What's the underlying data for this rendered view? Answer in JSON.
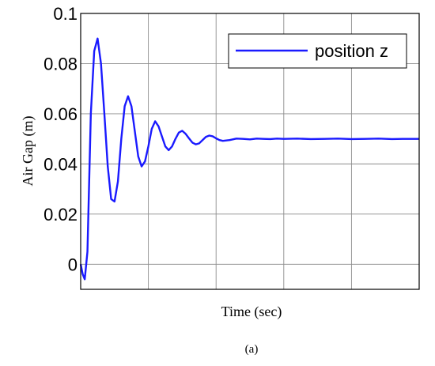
{
  "chart_data": {
    "type": "line",
    "xlabel": "Time (sec)",
    "ylabel": "Air Gap (m)",
    "caption": "(a)",
    "x_ticks_labeled": false,
    "xlim": [
      0,
      5
    ],
    "ylim": [
      -0.01,
      0.1
    ],
    "yticks": [
      0,
      0.02,
      0.04,
      0.06,
      0.08,
      0.1
    ],
    "ytick_labels": [
      "0",
      "0.02",
      "0.04",
      "0.06",
      "0.08",
      "0.1"
    ],
    "grid": true,
    "legend": {
      "position": "top-right"
    },
    "series": [
      {
        "name": "position z",
        "color": "#1a1aff",
        "x": [
          0,
          0.03,
          0.06,
          0.1,
          0.15,
          0.2,
          0.25,
          0.3,
          0.35,
          0.4,
          0.45,
          0.5,
          0.55,
          0.6,
          0.65,
          0.7,
          0.75,
          0.8,
          0.85,
          0.9,
          0.95,
          1.0,
          1.05,
          1.1,
          1.15,
          1.2,
          1.25,
          1.3,
          1.35,
          1.4,
          1.45,
          1.5,
          1.55,
          1.6,
          1.65,
          1.7,
          1.75,
          1.8,
          1.85,
          1.9,
          1.95,
          2.0,
          2.05,
          2.1,
          2.2,
          2.3,
          2.4,
          2.5,
          2.6,
          2.7,
          2.8,
          2.9,
          3.0,
          3.2,
          3.4,
          3.6,
          3.8,
          4.0,
          4.2,
          4.4,
          4.6,
          4.8,
          5.0
        ],
        "y": [
          0,
          -0.004,
          -0.006,
          0.005,
          0.06,
          0.085,
          0.09,
          0.08,
          0.06,
          0.039,
          0.026,
          0.025,
          0.033,
          0.05,
          0.063,
          0.067,
          0.063,
          0.053,
          0.043,
          0.039,
          0.041,
          0.047,
          0.054,
          0.057,
          0.055,
          0.051,
          0.047,
          0.0455,
          0.047,
          0.05,
          0.0525,
          0.0532,
          0.052,
          0.0502,
          0.0485,
          0.0478,
          0.0482,
          0.0495,
          0.0508,
          0.0513,
          0.051,
          0.0502,
          0.0495,
          0.0492,
          0.0495,
          0.0501,
          0.05,
          0.0498,
          0.0501,
          0.05,
          0.0499,
          0.0501,
          0.05,
          0.0501,
          0.0499,
          0.05,
          0.0501,
          0.0499,
          0.05,
          0.0501,
          0.0499,
          0.05,
          0.05
        ]
      }
    ]
  }
}
